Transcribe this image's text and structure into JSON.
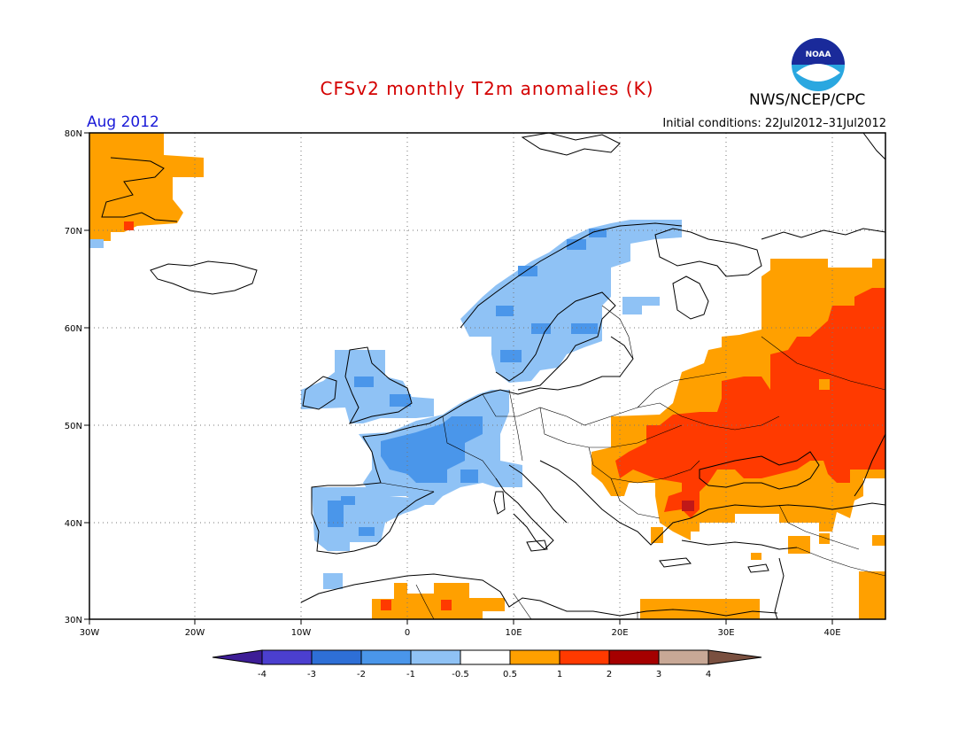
{
  "header": {
    "title": "CFSv2 monthly T2m anomalies (K)",
    "org": "NWS/NCEP/CPC",
    "month": "Aug 2012",
    "initial_conditions": "Initial conditions: 22Jul2012–31Jul2012",
    "logo_text": "NOAA"
  },
  "map": {
    "lon_ticks": [
      "30W",
      "20W",
      "10W",
      "0",
      "10E",
      "20E",
      "30E",
      "40E"
    ],
    "lat_ticks": [
      "30N",
      "40N",
      "50N",
      "60N",
      "70N",
      "80N"
    ],
    "lon_range": [
      -30,
      45
    ],
    "lat_range": [
      30,
      80
    ]
  },
  "colorbar": {
    "labels": [
      "-4",
      "-3",
      "-2",
      "-1",
      "-0.5",
      "0.5",
      "1",
      "2",
      "3",
      "4"
    ],
    "colors": [
      "#3d1d96",
      "#4b3fcf",
      "#2e6fd6",
      "#4a96ea",
      "#8fc2f5",
      "#ffffff",
      "#ffa000",
      "#ff3a00",
      "#a50000",
      "#c8a896",
      "#7a5040"
    ]
  },
  "anomaly_colors": {
    "light_blue": "#8fc2f5",
    "blue": "#4a96ea",
    "orange": "#ffa000",
    "red_orange": "#ff3a00",
    "dark_red": "#c01818"
  }
}
